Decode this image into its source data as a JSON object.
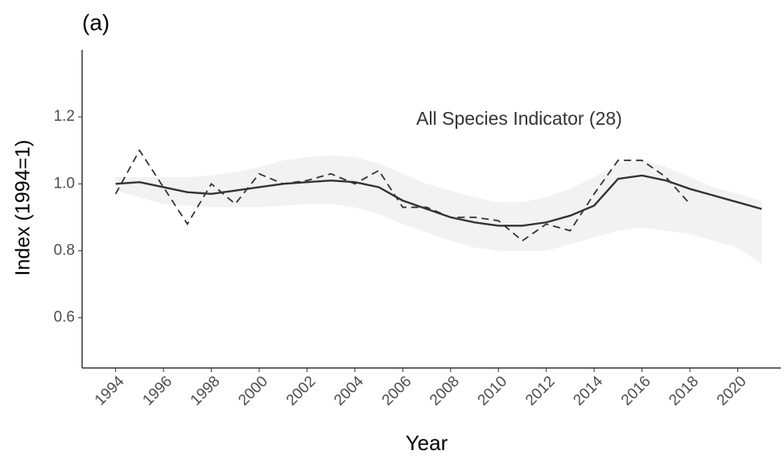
{
  "chart_data": {
    "type": "line",
    "title": "(a)",
    "annotation": "All Species Indicator (28)",
    "x_label": "Year",
    "y_label": "Index (1994=1)",
    "x": [
      1994,
      1995,
      1996,
      1997,
      1998,
      1999,
      2000,
      2001,
      2002,
      2003,
      2004,
      2005,
      2006,
      2007,
      2008,
      2009,
      2010,
      2011,
      2012,
      2013,
      2014,
      2015,
      2016,
      2017,
      2018,
      2019,
      2020,
      2021
    ],
    "series": [
      {
        "color": "#333333",
        "dashed": true,
        "values": [
          0.97,
          1.1,
          0.99,
          0.88,
          1.0,
          0.94,
          1.03,
          1.0,
          1.01,
          1.03,
          1.0,
          1.04,
          0.93,
          0.93,
          0.9,
          0.9,
          0.89,
          0.83,
          0.88,
          0.86,
          0.97,
          1.07,
          1.07,
          1.02,
          0.94,
          null,
          null,
          null
        ]
      },
      {
        "color": "#333333",
        "dashed": false,
        "values": [
          1.0,
          1.005,
          0.99,
          0.975,
          0.97,
          0.98,
          0.99,
          1.0,
          1.005,
          1.01,
          1.005,
          0.99,
          0.95,
          0.925,
          0.9,
          0.885,
          0.875,
          0.875,
          0.885,
          0.905,
          0.935,
          1.015,
          1.025,
          1.01,
          0.985,
          0.965,
          0.945,
          0.925
        ]
      }
    ],
    "band": {
      "color": "#f2f2f2",
      "upper": [
        1.02,
        1.02,
        1.02,
        1.02,
        1.025,
        1.035,
        1.05,
        1.07,
        1.08,
        1.085,
        1.08,
        1.06,
        1.03,
        1.0,
        0.98,
        0.96,
        0.945,
        0.945,
        0.96,
        0.985,
        1.02,
        1.06,
        1.07,
        1.05,
        1.02,
        0.99,
        0.97,
        0.95
      ],
      "lower": [
        0.98,
        0.96,
        0.94,
        0.935,
        0.93,
        0.93,
        0.93,
        0.935,
        0.94,
        0.94,
        0.93,
        0.91,
        0.88,
        0.855,
        0.83,
        0.81,
        0.8,
        0.8,
        0.8,
        0.82,
        0.84,
        0.86,
        0.87,
        0.86,
        0.85,
        0.83,
        0.81,
        0.76
      ]
    },
    "xlim": [
      1992.6,
      2021.8
    ],
    "ylim": [
      0.45,
      1.4
    ],
    "xticks": [
      1994,
      1996,
      1998,
      2000,
      2002,
      2004,
      2006,
      2008,
      2010,
      2012,
      2014,
      2016,
      2018,
      2020
    ],
    "yticks": [
      0.6,
      0.8,
      {
        "value": 1,
        "label": "1.0"
      },
      1.2
    ],
    "grid": false
  }
}
